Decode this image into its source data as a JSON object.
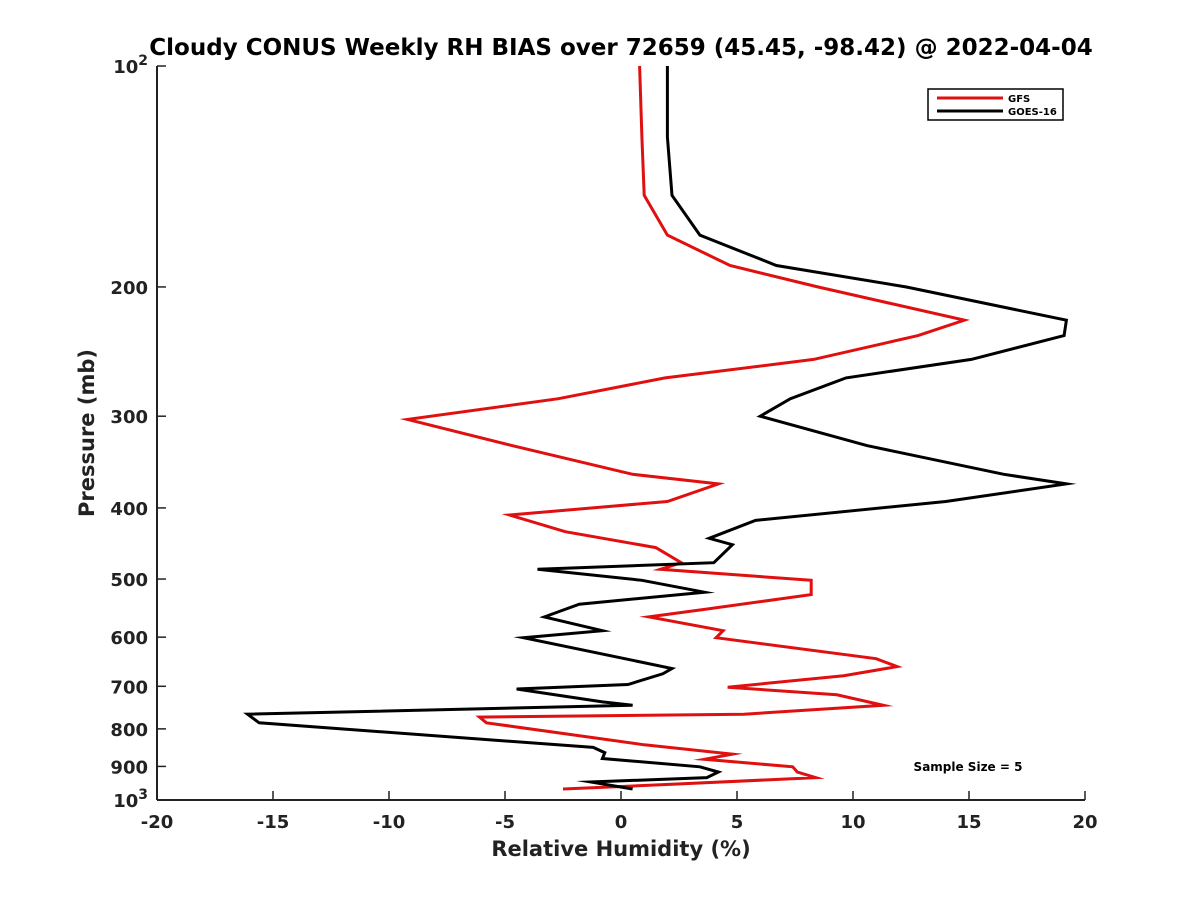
{
  "chart_data": {
    "type": "line",
    "title": "Cloudy CONUS Weekly RH BIAS over 72659 (45.45, -98.42) @ 2022-04-04",
    "xlabel": "Relative Humidity (%)",
    "ylabel": "Pressure (mb)",
    "xlim": [
      -20,
      20
    ],
    "ylim": [
      100,
      1000
    ],
    "y_scale": "log",
    "y_reversed": true,
    "x_tick_labels": [
      "-20",
      "-15",
      "-10",
      "-5",
      "0",
      "5",
      "10",
      "15",
      "20"
    ],
    "y_tick_labels": [
      "100",
      "200",
      "300",
      "400",
      "500",
      "600",
      "700",
      "800",
      "900",
      "1000"
    ],
    "y_tick_label_text": {
      "100": {
        "base": "10",
        "exp": "2"
      },
      "200": {
        "base": "200"
      },
      "300": {
        "base": "300"
      },
      "400": {
        "base": "400"
      },
      "500": {
        "base": "500"
      },
      "600": {
        "base": "600"
      },
      "700": {
        "base": "700"
      },
      "800": {
        "base": "800"
      },
      "900": {
        "base": "900"
      },
      "1000": {
        "base": "10",
        "exp": "3"
      }
    },
    "grid": false,
    "legend_position": "top-right",
    "annotation": "Sample Size = 5",
    "series": [
      {
        "name": "GFS",
        "color": "#e01010",
        "points": [
          [
            0.8,
            100
          ],
          [
            0.9,
            125
          ],
          [
            1.0,
            150
          ],
          [
            2.0,
            170
          ],
          [
            4.7,
            187
          ],
          [
            8.5,
            200
          ],
          [
            14.8,
            222
          ],
          [
            12.8,
            233
          ],
          [
            8.3,
            251
          ],
          [
            1.9,
            266
          ],
          [
            -2.7,
            284
          ],
          [
            -9.2,
            303
          ],
          [
            -4.7,
            329
          ],
          [
            0.5,
            360
          ],
          [
            4.2,
            371
          ],
          [
            2.0,
            392
          ],
          [
            -4.8,
            409
          ],
          [
            -2.4,
            431
          ],
          [
            1.5,
            453
          ],
          [
            2.6,
            475
          ],
          [
            1.7,
            485
          ],
          [
            8.2,
            502
          ],
          [
            8.2,
            525
          ],
          [
            3.6,
            550
          ],
          [
            1.2,
            563
          ],
          [
            4.4,
            588
          ],
          [
            4.1,
            601
          ],
          [
            11.0,
            642
          ],
          [
            11.9,
            658
          ],
          [
            9.6,
            677
          ],
          [
            4.6,
            702
          ],
          [
            9.3,
            719
          ],
          [
            11.3,
            743
          ],
          [
            5.3,
            764
          ],
          [
            -6.1,
            771
          ],
          [
            -5.8,
            785
          ],
          [
            1.0,
            841
          ],
          [
            4.8,
            866
          ],
          [
            3.6,
            880
          ],
          [
            7.4,
            901
          ],
          [
            7.6,
            916
          ],
          [
            8.4,
            932
          ],
          [
            2.2,
            952
          ],
          [
            -2.5,
            966
          ]
        ]
      },
      {
        "name": "GOES-16",
        "color": "#000000",
        "points": [
          [
            2.0,
            100
          ],
          [
            2.0,
            125
          ],
          [
            2.2,
            150
          ],
          [
            3.4,
            170
          ],
          [
            6.7,
            187
          ],
          [
            12.3,
            200
          ],
          [
            19.2,
            222
          ],
          [
            19.1,
            233
          ],
          [
            15.1,
            251
          ],
          [
            9.7,
            266
          ],
          [
            7.3,
            284
          ],
          [
            6.0,
            300
          ],
          [
            10.6,
            329
          ],
          [
            16.5,
            360
          ],
          [
            19.2,
            371
          ],
          [
            14.0,
            392
          ],
          [
            5.8,
            416
          ],
          [
            3.8,
            440
          ],
          [
            4.8,
            449
          ],
          [
            4.0,
            475
          ],
          [
            -3.6,
            485
          ],
          [
            0.9,
            502
          ],
          [
            3.6,
            521
          ],
          [
            -1.8,
            541
          ],
          [
            -3.3,
            563
          ],
          [
            -0.8,
            588
          ],
          [
            -4.2,
            601
          ],
          [
            2.2,
            662
          ],
          [
            1.8,
            673
          ],
          [
            0.3,
            696
          ],
          [
            -4.5,
            706
          ],
          [
            -0.8,
            735
          ],
          [
            0.5,
            743
          ],
          [
            -16.1,
            764
          ],
          [
            -15.6,
            785
          ],
          [
            -1.2,
            848
          ],
          [
            -0.7,
            862
          ],
          [
            -0.8,
            878
          ],
          [
            3.4,
            901
          ],
          [
            4.2,
            916
          ],
          [
            3.7,
            932
          ],
          [
            -1.3,
            945
          ],
          [
            0.5,
            966
          ]
        ]
      }
    ]
  }
}
